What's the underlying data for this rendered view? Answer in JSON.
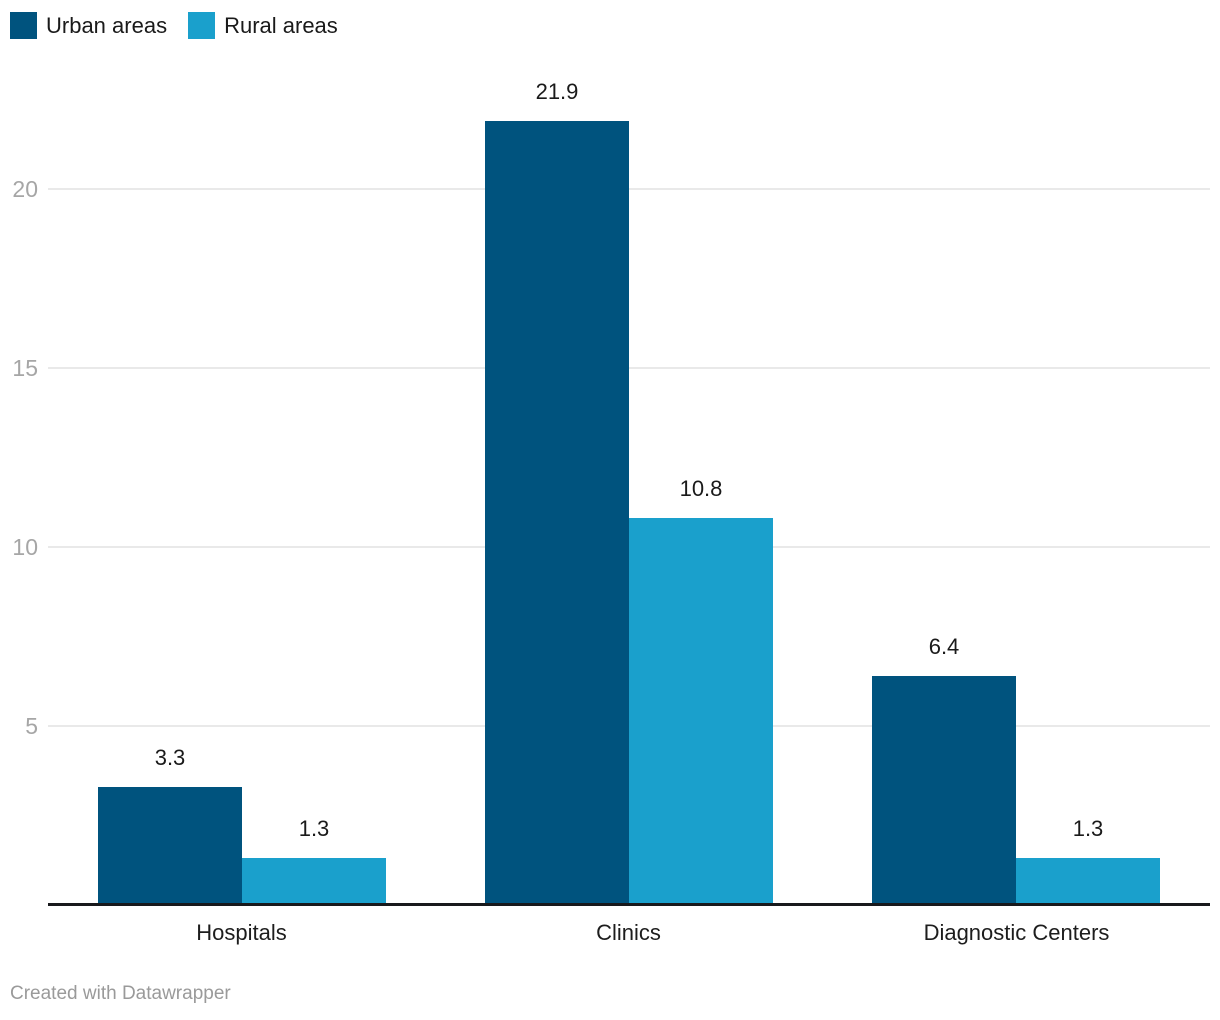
{
  "legend": {
    "items": [
      {
        "label": "Urban areas",
        "color": "#00537E"
      },
      {
        "label": "Rural areas",
        "color": "#1AA0CC"
      }
    ]
  },
  "footer": {
    "credit": "Created with Datawrapper"
  },
  "chart_data": {
    "type": "bar",
    "categories": [
      "Hospitals",
      "Clinics",
      "Diagnostic Centers"
    ],
    "series": [
      {
        "name": "Urban areas",
        "color": "#00537E",
        "values": [
          3.3,
          21.9,
          6.4
        ],
        "labels": [
          "3.3",
          "21.9",
          "6.4"
        ]
      },
      {
        "name": "Rural areas",
        "color": "#1AA0CC",
        "values": [
          1.3,
          10.8,
          1.3
        ],
        "labels": [
          "1.3",
          "10.8",
          "1.3"
        ]
      }
    ],
    "y_ticks": [
      5,
      10,
      15,
      20
    ],
    "ylim": [
      0,
      25.3
    ],
    "grid": "horizontal",
    "legend_position": "top-left"
  }
}
